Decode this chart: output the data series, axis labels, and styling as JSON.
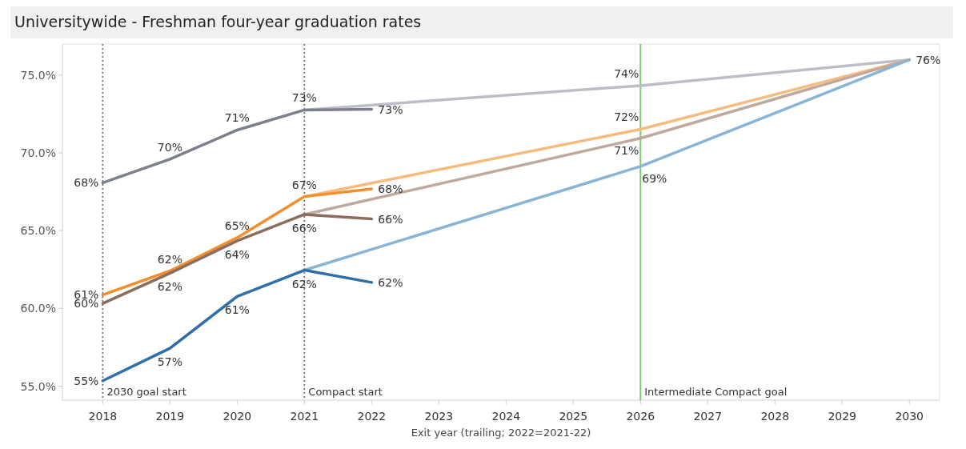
{
  "chart_data": {
    "type": "line",
    "title": "Universitywide - Freshman four-year graduation rates",
    "xlabel": "Exit year (trailing; 2022=2021-22)",
    "xlim": [
      2017.4,
      2030.45
    ],
    "xticks": [
      2018,
      2019,
      2020,
      2021,
      2022,
      2023,
      2024,
      2025,
      2026,
      2027,
      2028,
      2029,
      2030
    ],
    "ylim": [
      54.1,
      77
    ],
    "yticks": [
      {
        "value": 55,
        "label": "55.0%"
      },
      {
        "value": 60,
        "label": "60.0%"
      },
      {
        "value": 65,
        "label": "65.0%"
      },
      {
        "value": 70,
        "label": "70.0%"
      },
      {
        "value": 75,
        "label": "75.0%"
      }
    ],
    "grid": false,
    "marker": "none",
    "line_style": "solid",
    "series": [
      {
        "color": "#bcbec6",
        "x": [
          2021,
          2026,
          2030
        ],
        "values": [
          72.76,
          74.33,
          75.99
        ],
        "value_labels": [
          null,
          "74%",
          "76%"
        ]
      },
      {
        "color": "#f7bb7e",
        "x": [
          2021,
          2026,
          2030
        ],
        "values": [
          67.19,
          71.52,
          75.99
        ],
        "value_labels": [
          null,
          "72%",
          null
        ]
      },
      {
        "color": "#bfa99c",
        "x": [
          2021,
          2026,
          2030
        ],
        "values": [
          66.04,
          70.94,
          75.99
        ],
        "value_labels": [
          null,
          "71%",
          null
        ]
      },
      {
        "color": "#88b5d6",
        "x": [
          2021,
          2026,
          2030
        ],
        "values": [
          62.46,
          69.13,
          75.99
        ],
        "value_labels": [
          null,
          "69%",
          null
        ]
      },
      {
        "color": "#7b808c",
        "x": [
          2018,
          2019,
          2020,
          2021,
          2022
        ],
        "values": [
          68.08,
          69.6,
          71.47,
          72.76,
          72.8
        ],
        "value_labels": [
          "68%",
          "70%",
          "71%",
          "73%",
          "73%"
        ]
      },
      {
        "color": "#f28e2b",
        "x": [
          2018,
          2019,
          2020,
          2021,
          2022
        ],
        "values": [
          60.87,
          62.41,
          64.55,
          67.19,
          67.69
        ],
        "value_labels": [
          "61%",
          "62%",
          "65%",
          "67%",
          "68%"
        ]
      },
      {
        "color": "#8c6d5c",
        "x": [
          2018,
          2019,
          2020,
          2021,
          2022
        ],
        "values": [
          60.32,
          62.26,
          64.35,
          66.04,
          65.75
        ],
        "value_labels": [
          "60%",
          "62%",
          "64%",
          "66%",
          "66%"
        ]
      },
      {
        "color": "#2f6ea6",
        "x": [
          2018,
          2019,
          2020,
          2021,
          2022
        ],
        "values": [
          55.35,
          57.44,
          60.77,
          62.46,
          61.67
        ],
        "value_labels": [
          "55%",
          "57%",
          "61%",
          "62%",
          "62%"
        ]
      }
    ],
    "ref_lines": [
      {
        "axis": "x",
        "value": 2018,
        "label": "2030 goal start",
        "color": "#666666",
        "line_style": "dotted"
      },
      {
        "axis": "x",
        "value": 2021,
        "label": "Compact start",
        "color": "#666666",
        "line_style": "dotted"
      },
      {
        "axis": "x",
        "value": 2026,
        "label": "Intermediate Compact goal",
        "color": "#7dca6a",
        "line_style": "solid"
      }
    ]
  }
}
